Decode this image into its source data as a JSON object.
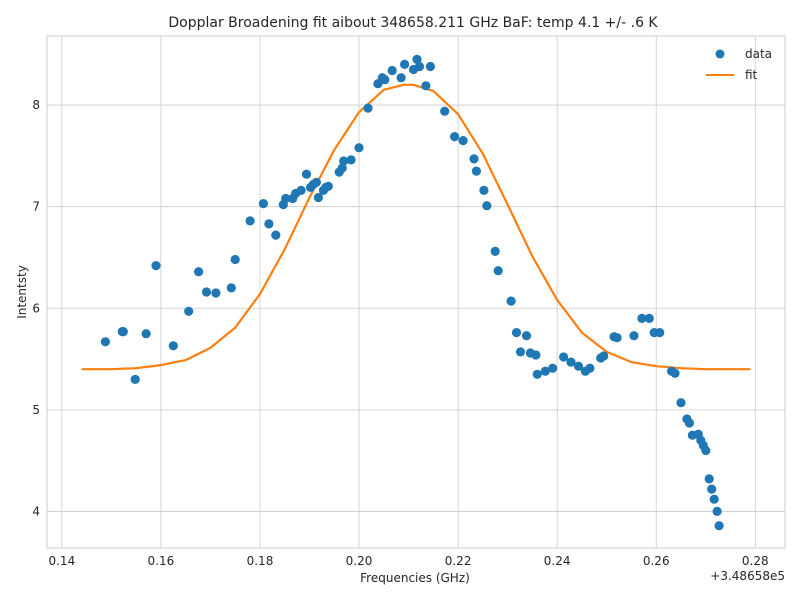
{
  "chart_data": {
    "type": "scatter",
    "title": "Dopplar Broadening fit aibout 348658.211 GHz BaF: temp 4.1 +/- .6 K",
    "xlabel": "Frequencies (GHz)",
    "ylabel": "Intentsty",
    "offset_label": "+3.48658e5",
    "xlim": [
      0.137,
      0.286
    ],
    "ylim": [
      3.64,
      8.68
    ],
    "xticks": [
      0.14,
      0.16,
      0.18,
      0.2,
      0.22,
      0.24,
      0.26,
      0.28
    ],
    "xtick_labels": [
      "0.14",
      "0.16",
      "0.18",
      "0.20",
      "0.22",
      "0.24",
      "0.26",
      "0.28"
    ],
    "yticks": [
      4,
      5,
      6,
      7,
      8
    ],
    "ytick_labels": [
      "4",
      "5",
      "6",
      "7",
      "8"
    ],
    "grid": true,
    "legend_position": "top-right",
    "colors": {
      "data": "#1f77b4",
      "fit": "#ff7f0e"
    },
    "series": [
      {
        "name": "data",
        "kind": "scatter",
        "points": [
          [
            0.1488,
            5.67
          ],
          [
            0.1522,
            5.77
          ],
          [
            0.1524,
            5.77
          ],
          [
            0.1548,
            5.3
          ],
          [
            0.157,
            5.75
          ],
          [
            0.159,
            6.42
          ],
          [
            0.1625,
            5.63
          ],
          [
            0.1656,
            5.97
          ],
          [
            0.1676,
            6.36
          ],
          [
            0.1692,
            6.16
          ],
          [
            0.1711,
            6.15
          ],
          [
            0.1742,
            6.2
          ],
          [
            0.175,
            6.48
          ],
          [
            0.178,
            6.86
          ],
          [
            0.1807,
            7.03
          ],
          [
            0.1818,
            6.83
          ],
          [
            0.1832,
            6.72
          ],
          [
            0.1847,
            7.02
          ],
          [
            0.1852,
            7.08
          ],
          [
            0.1866,
            7.08
          ],
          [
            0.1872,
            7.13
          ],
          [
            0.1883,
            7.16
          ],
          [
            0.1894,
            7.32
          ],
          [
            0.1902,
            7.19
          ],
          [
            0.1908,
            7.22
          ],
          [
            0.1914,
            7.24
          ],
          [
            0.1918,
            7.09
          ],
          [
            0.1928,
            7.16
          ],
          [
            0.1933,
            7.19
          ],
          [
            0.1938,
            7.2
          ],
          [
            0.196,
            7.34
          ],
          [
            0.1966,
            7.38
          ],
          [
            0.1969,
            7.45
          ],
          [
            0.1984,
            7.46
          ],
          [
            0.2,
            7.58
          ],
          [
            0.2018,
            7.97
          ],
          [
            0.2038,
            8.21
          ],
          [
            0.2047,
            8.27
          ],
          [
            0.2052,
            8.25
          ],
          [
            0.2067,
            8.34
          ],
          [
            0.2085,
            8.27
          ],
          [
            0.2092,
            8.4
          ],
          [
            0.211,
            8.35
          ],
          [
            0.2117,
            8.45
          ],
          [
            0.2122,
            8.38
          ],
          [
            0.2135,
            8.19
          ],
          [
            0.2144,
            8.38
          ],
          [
            0.2173,
            7.94
          ],
          [
            0.2193,
            7.69
          ],
          [
            0.221,
            7.65
          ],
          [
            0.2232,
            7.47
          ],
          [
            0.2237,
            7.35
          ],
          [
            0.2252,
            7.16
          ],
          [
            0.2258,
            7.01
          ],
          [
            0.2275,
            6.56
          ],
          [
            0.2281,
            6.37
          ],
          [
            0.2307,
            6.07
          ],
          [
            0.2318,
            5.76
          ],
          [
            0.2326,
            5.57
          ],
          [
            0.2338,
            5.73
          ],
          [
            0.2346,
            5.56
          ],
          [
            0.2357,
            5.54
          ],
          [
            0.236,
            5.35
          ],
          [
            0.2376,
            5.38
          ],
          [
            0.2391,
            5.41
          ],
          [
            0.2413,
            5.52
          ],
          [
            0.2428,
            5.47
          ],
          [
            0.2443,
            5.43
          ],
          [
            0.2457,
            5.38
          ],
          [
            0.2466,
            5.41
          ],
          [
            0.2488,
            5.51
          ],
          [
            0.2494,
            5.53
          ],
          [
            0.2515,
            5.72
          ],
          [
            0.2521,
            5.71
          ],
          [
            0.2555,
            5.73
          ],
          [
            0.2571,
            5.9
          ],
          [
            0.2586,
            5.9
          ],
          [
            0.2596,
            5.76
          ],
          [
            0.2607,
            5.76
          ],
          [
            0.2631,
            5.38
          ],
          [
            0.2638,
            5.36
          ],
          [
            0.265,
            5.07
          ],
          [
            0.2662,
            4.91
          ],
          [
            0.2667,
            4.87
          ],
          [
            0.2673,
            4.75
          ],
          [
            0.2685,
            4.76
          ],
          [
            0.269,
            4.7
          ],
          [
            0.2695,
            4.65
          ],
          [
            0.27,
            4.6
          ],
          [
            0.2707,
            4.32
          ],
          [
            0.2712,
            4.22
          ],
          [
            0.2717,
            4.12
          ],
          [
            0.2723,
            4.0
          ],
          [
            0.2727,
            3.86
          ]
        ]
      },
      {
        "name": "fit",
        "kind": "line",
        "points": [
          [
            0.144,
            5.4
          ],
          [
            0.15,
            5.4
          ],
          [
            0.155,
            5.41
          ],
          [
            0.16,
            5.44
          ],
          [
            0.165,
            5.49
          ],
          [
            0.17,
            5.61
          ],
          [
            0.175,
            5.81
          ],
          [
            0.18,
            6.14
          ],
          [
            0.185,
            6.58
          ],
          [
            0.19,
            7.09
          ],
          [
            0.195,
            7.56
          ],
          [
            0.2,
            7.93
          ],
          [
            0.205,
            8.15
          ],
          [
            0.209,
            8.2
          ],
          [
            0.211,
            8.2
          ],
          [
            0.215,
            8.14
          ],
          [
            0.22,
            7.91
          ],
          [
            0.225,
            7.52
          ],
          [
            0.23,
            7.02
          ],
          [
            0.235,
            6.51
          ],
          [
            0.24,
            6.08
          ],
          [
            0.245,
            5.76
          ],
          [
            0.25,
            5.57
          ],
          [
            0.255,
            5.47
          ],
          [
            0.26,
            5.43
          ],
          [
            0.265,
            5.41
          ],
          [
            0.27,
            5.4
          ],
          [
            0.279,
            5.4
          ]
        ]
      }
    ]
  }
}
